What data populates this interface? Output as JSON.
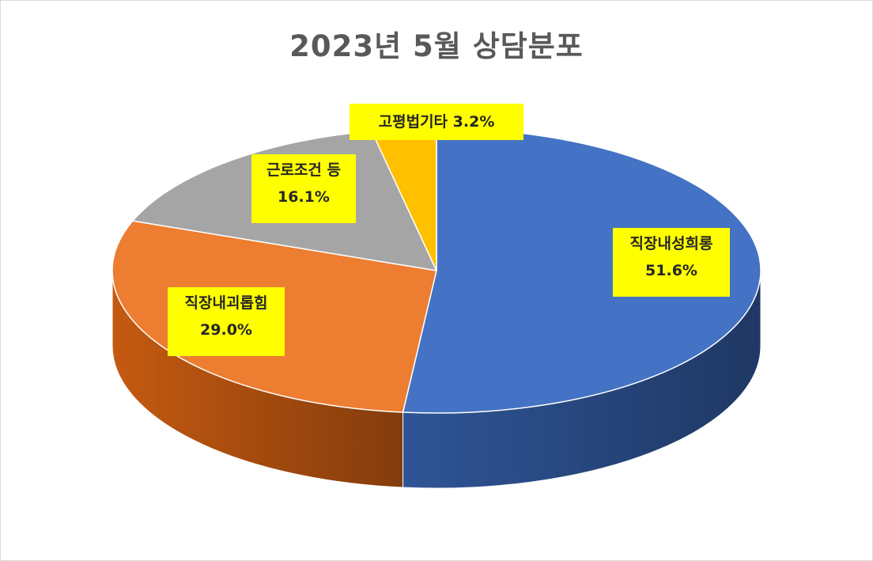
{
  "chart_data": {
    "type": "pie",
    "title": "2023년 5월 상담분포",
    "slices": [
      {
        "label": "직장내성희롱",
        "value": 51.6,
        "value_text": "51.6%",
        "color": "#4472C4",
        "side_dark": "#1F3864",
        "side_light": "#2F5597"
      },
      {
        "label": "직장내괴롭힘",
        "value": 29.0,
        "value_text": "29.0%",
        "color": "#ED7D31",
        "side_dark": "#843C0C",
        "side_light": "#C55A11"
      },
      {
        "label": "근로조건 등",
        "value": 16.1,
        "value_text": "16.1%",
        "color": "#A5A5A5",
        "side_dark": "#6E6E6E",
        "side_light": "#8C8C8C"
      },
      {
        "label": "고평법기타",
        "value": 3.2,
        "value_text": "3.2%",
        "color": "#FFC000",
        "side_dark": "#7F6000",
        "side_light": "#BF9000"
      }
    ],
    "label_background": "#FFFF00",
    "legend": "none"
  }
}
